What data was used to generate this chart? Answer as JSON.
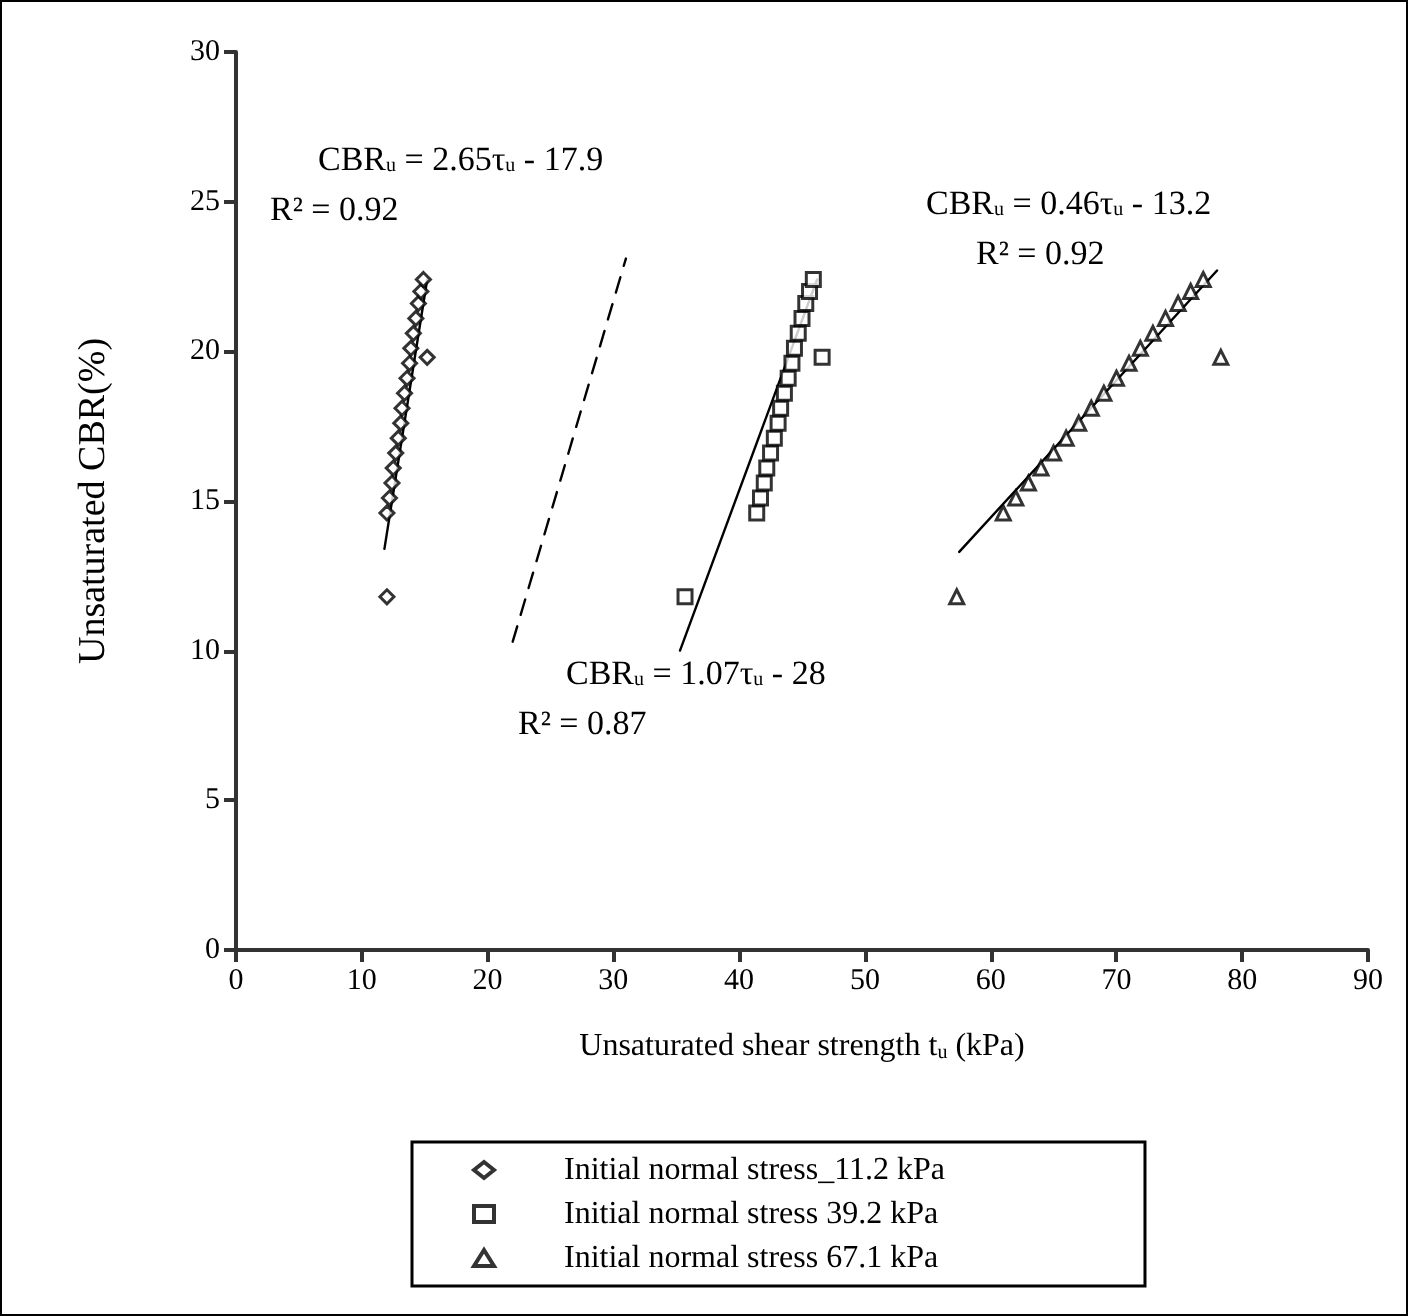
{
  "chart_data": {
    "type": "scatter",
    "xlabel": "Unsaturated shear strength t$_{u}$ (kPa)",
    "ylabel": "Unsaturated CBR(%)",
    "xlim": [
      0,
      90
    ],
    "xticks": [
      0,
      10,
      20,
      30,
      40,
      50,
      60,
      70,
      80,
      90
    ],
    "ylim": [
      0,
      30
    ],
    "yticks": [
      0,
      5,
      10,
      15,
      20,
      25,
      30
    ],
    "grid": false,
    "legend": "bottom",
    "annotations": [
      "CBR$_{u}$ = 2.65τ$_{u}$ - 17.9",
      "R² = 0.92",
      "CBR$_{u}$ = 0.46τ$_{u}$ - 13.2",
      "R² = 0.92",
      "CBR$_{u}$ = 1.07τ$_{u}$ - 28",
      "R² = 0.87"
    ],
    "series": [
      {
        "name": "Initial normal stress_11.2 kPa",
        "color": "#000000",
        "marker": "diamond",
        "x": [
          12.0,
          12.0,
          12.2,
          12.4,
          12.5,
          12.7,
          12.9,
          13.1,
          13.2,
          13.4,
          13.6,
          13.8,
          13.9,
          14.1,
          14.3,
          14.5,
          14.7,
          14.9,
          15.2
        ],
        "values": [
          11.8,
          14.6,
          15.1,
          15.6,
          16.1,
          16.6,
          17.1,
          17.6,
          18.1,
          18.6,
          19.1,
          19.6,
          20.1,
          20.6,
          21.1,
          21.6,
          22.0,
          22.4,
          19.8
        ]
      },
      {
        "name": "Initial normal stress 39.2 kPa",
        "color": "#000000",
        "marker": "square",
        "x": [
          35.7,
          41.4,
          41.7,
          42.0,
          42.2,
          42.5,
          42.8,
          43.1,
          43.3,
          43.6,
          43.9,
          44.2,
          44.4,
          44.7,
          45.0,
          45.3,
          45.6,
          45.9,
          46.6
        ],
        "values": [
          11.8,
          14.6,
          15.1,
          15.6,
          16.1,
          16.6,
          17.1,
          17.6,
          18.1,
          18.6,
          19.1,
          19.6,
          20.1,
          20.6,
          21.1,
          21.6,
          22.0,
          22.4,
          19.8
        ]
      },
      {
        "name": "Initial normal stress 67.1 kPa",
        "color": "#000000",
        "marker": "triangle",
        "x": [
          57.3,
          61.0,
          62.0,
          63.0,
          64.0,
          65.0,
          66.0,
          67.0,
          68.0,
          69.0,
          70.0,
          71.0,
          71.9,
          72.9,
          73.9,
          74.9,
          75.9,
          76.9,
          78.3
        ],
        "values": [
          11.8,
          14.6,
          15.1,
          15.6,
          16.1,
          16.6,
          17.1,
          17.6,
          18.1,
          18.6,
          19.1,
          19.6,
          20.1,
          20.6,
          21.1,
          21.6,
          22.0,
          22.4,
          19.8
        ]
      },
      {
        "type": "line",
        "color": "#000000",
        "marker": "none",
        "line_style": "solid",
        "x": [
          11.8,
          15.2
        ],
        "values": [
          13.4,
          22.4
        ]
      },
      {
        "type": "line",
        "color": "#000000",
        "marker": "none",
        "line_style": "dashed",
        "x": [
          22.0,
          31.0
        ],
        "values": [
          10.3,
          23.1
        ]
      },
      {
        "type": "line",
        "color": "#000000",
        "marker": "none",
        "line_style": "solid",
        "x": [
          35.3,
          46.2
        ],
        "values": [
          10.0,
          22.4
        ]
      },
      {
        "type": "line",
        "color": "#000000",
        "marker": "none",
        "line_style": "solid",
        "x": [
          57.5,
          78.0
        ],
        "values": [
          13.3,
          22.7
        ]
      }
    ]
  }
}
